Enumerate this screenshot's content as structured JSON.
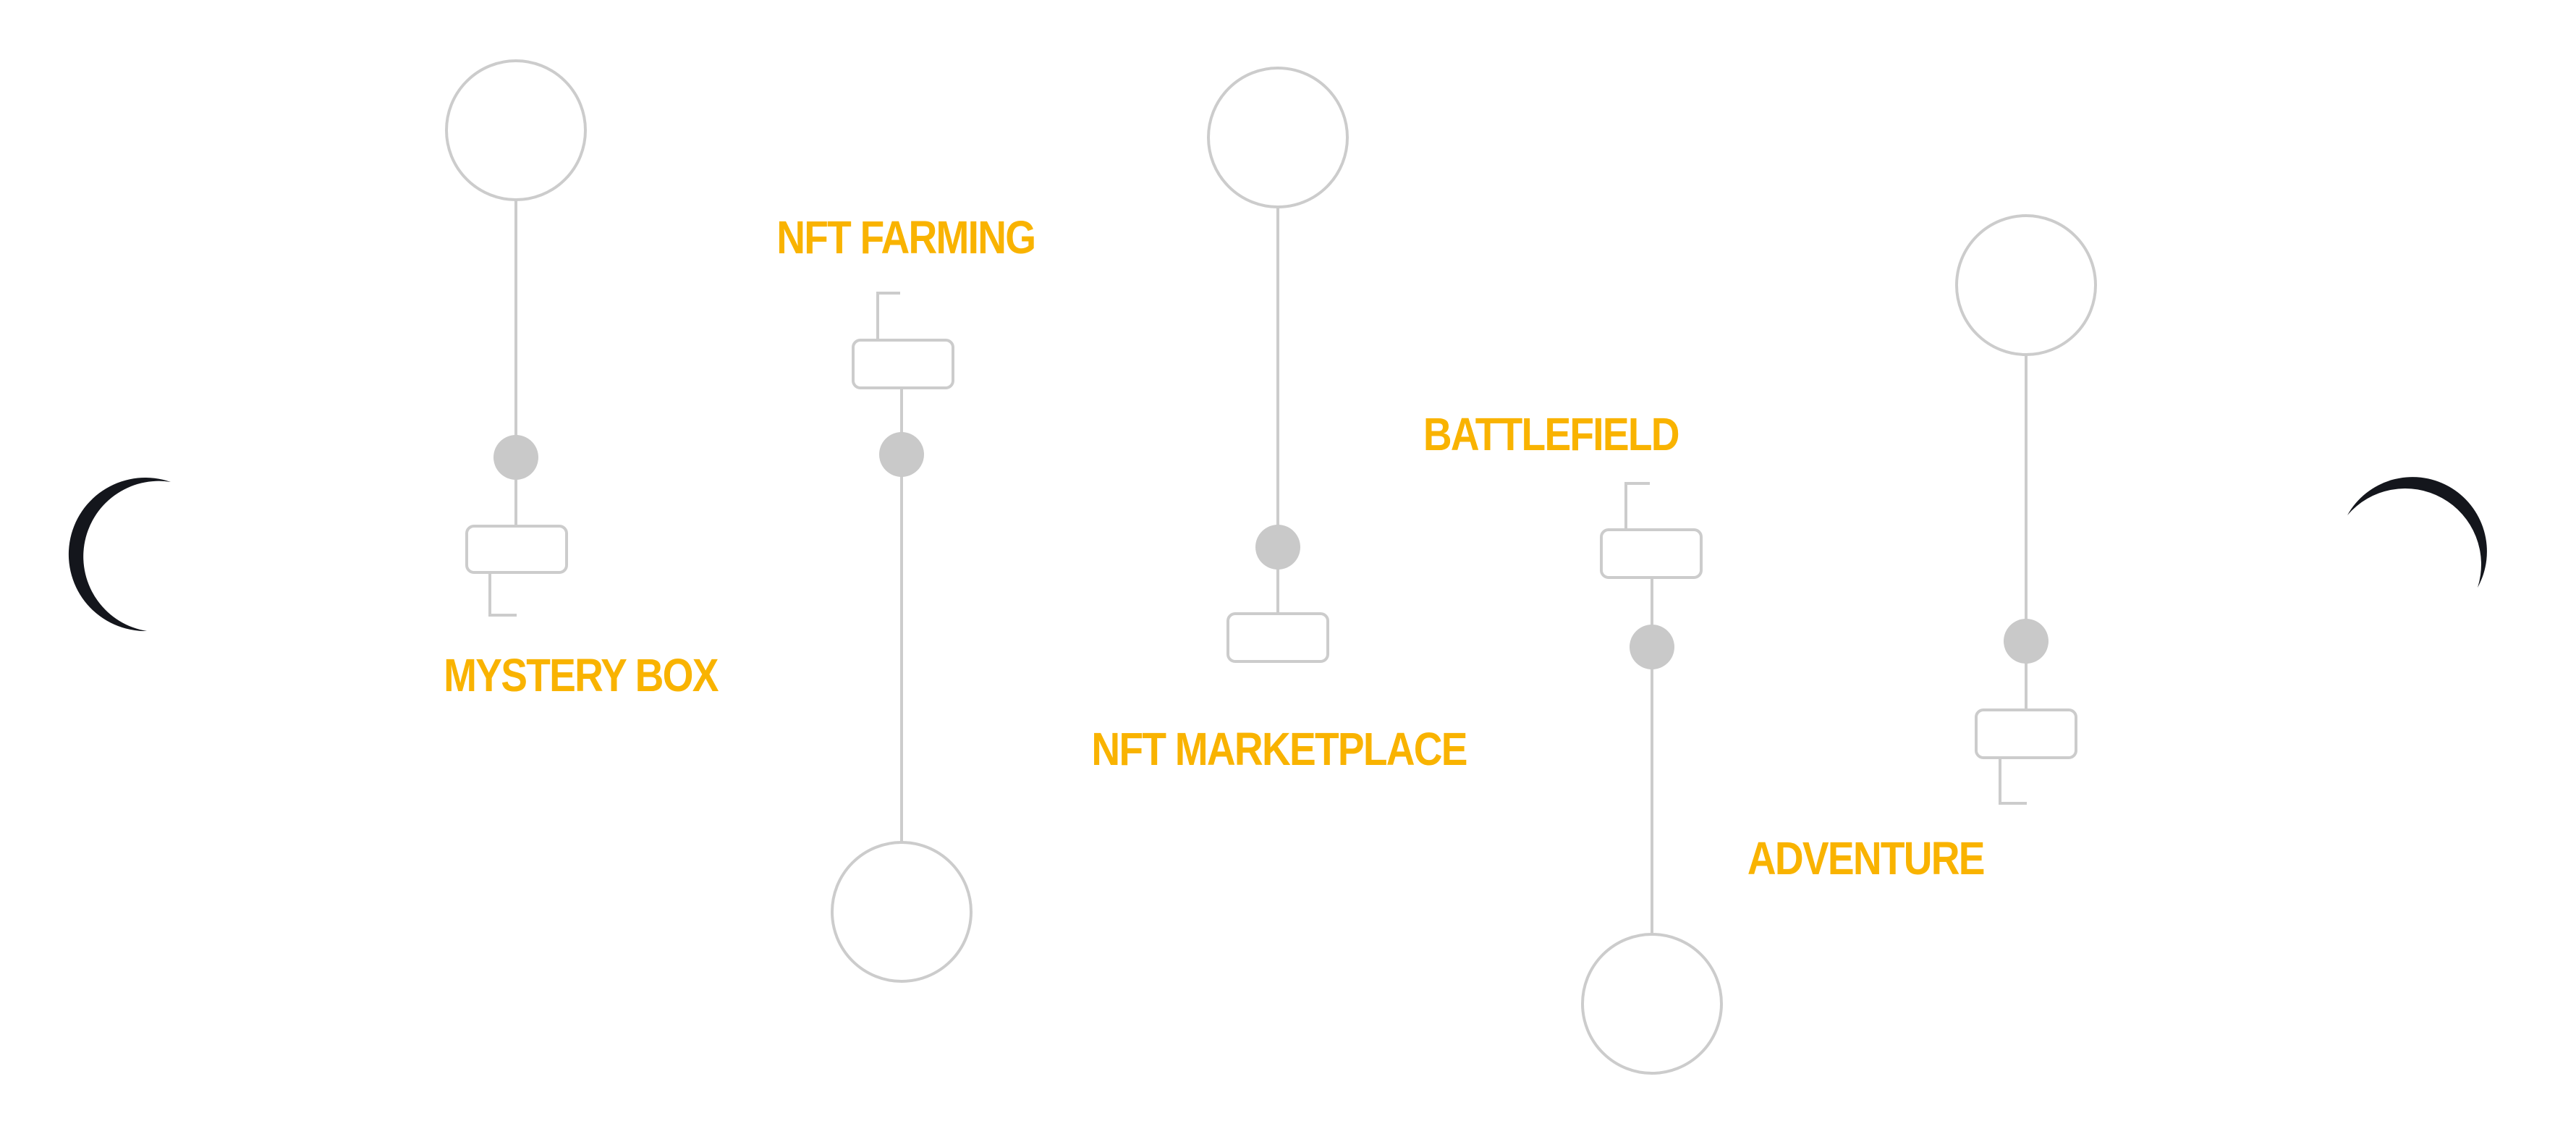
{
  "colors": {
    "accent": "#F9B300",
    "line": "#CCCCCC",
    "node": "#C9C9C9",
    "arrow": "#14161C",
    "background": "#FFFFFF"
  },
  "nav": {
    "prev_icon": "chevron-left-crescent-icon",
    "next_icon": "chevron-right-crescent-icon"
  },
  "features": [
    {
      "label": "MYSTERY BOX"
    },
    {
      "label": "NFT FARMING"
    },
    {
      "label": "NFT MARKETPLACE"
    },
    {
      "label": "BATTLEFIELD"
    },
    {
      "label": "ADVENTURE"
    }
  ]
}
